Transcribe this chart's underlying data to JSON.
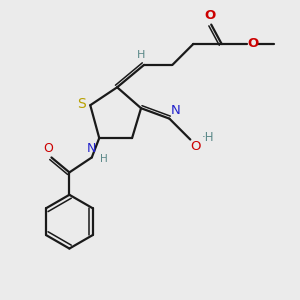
{
  "bg_color": "#ebebeb",
  "bond_color": "#1a1a1a",
  "s_color": "#b8a000",
  "n_color": "#2222cc",
  "o_color": "#cc0000",
  "h_color": "#5a8888",
  "figsize": [
    3.0,
    3.0
  ],
  "dpi": 100,
  "xlim": [
    0,
    10
  ],
  "ylim": [
    0,
    10
  ]
}
